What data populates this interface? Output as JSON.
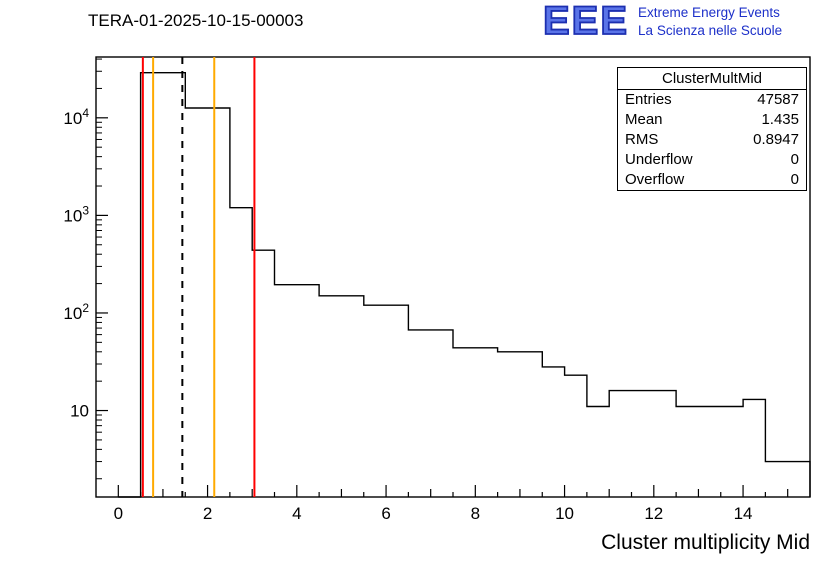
{
  "title": "TERA-01-2025-10-15-00003",
  "logo": {
    "acronym": "EEE",
    "line1": "Extreme Energy Events",
    "line2": "La Scienza nelle Scuole",
    "color": "#1d30c9"
  },
  "stats": {
    "title": "ClusterMultMid",
    "rows": [
      {
        "label": "Entries",
        "value": "47587"
      },
      {
        "label": "Mean",
        "value": "1.435"
      },
      {
        "label": "RMS",
        "value": "0.8947"
      },
      {
        "label": "Underflow",
        "value": "0"
      },
      {
        "label": "Overflow",
        "value": "0"
      }
    ]
  },
  "chart_data": {
    "type": "bar",
    "title": "TERA-01-2025-10-15-00003",
    "xlabel": "Cluster multiplicity Mid",
    "ylabel": "",
    "y_scale": "log",
    "xlim": [
      -0.5,
      15.5
    ],
    "ylim": [
      1.3,
      42000
    ],
    "x_major_ticks": [
      0,
      2,
      4,
      6,
      8,
      10,
      12,
      14
    ],
    "y_major_exponents": [
      1,
      2,
      3,
      4
    ],
    "grid": false,
    "legend": false,
    "line_color": "#000000",
    "bin_width": 0.5,
    "bin_edges": [
      0,
      0.5,
      1.0,
      1.5,
      2.0,
      2.5,
      3.0,
      3.5,
      4.0,
      4.5,
      5.0,
      5.5,
      6.0,
      6.5,
      7.0,
      7.5,
      8.0,
      8.5,
      9.0,
      9.5,
      10.0,
      10.5,
      11.0,
      11.5,
      12.0,
      12.5,
      13.0,
      13.5,
      14.0,
      14.5,
      15.0,
      15.5
    ],
    "counts": [
      0,
      29000,
      29000,
      12600,
      12600,
      1200,
      440,
      195,
      195,
      150,
      150,
      120,
      120,
      67,
      67,
      44,
      44,
      40,
      40,
      28,
      23,
      11,
      16,
      16,
      16,
      11,
      11,
      11,
      13,
      3,
      3
    ],
    "marker_lines": [
      {
        "x": 0.55,
        "color": "#ff0000",
        "style": "solid",
        "name": "lower-error-limit"
      },
      {
        "x": 0.78,
        "color": "#ffaa00",
        "style": "solid",
        "name": "lower-warning-limit"
      },
      {
        "x": 1.435,
        "color": "#000000",
        "style": "dashed",
        "name": "mean-marker"
      },
      {
        "x": 2.15,
        "color": "#ffaa00",
        "style": "solid",
        "name": "upper-warning-limit"
      },
      {
        "x": 3.05,
        "color": "#ff0000",
        "style": "solid",
        "name": "upper-error-limit"
      }
    ]
  }
}
